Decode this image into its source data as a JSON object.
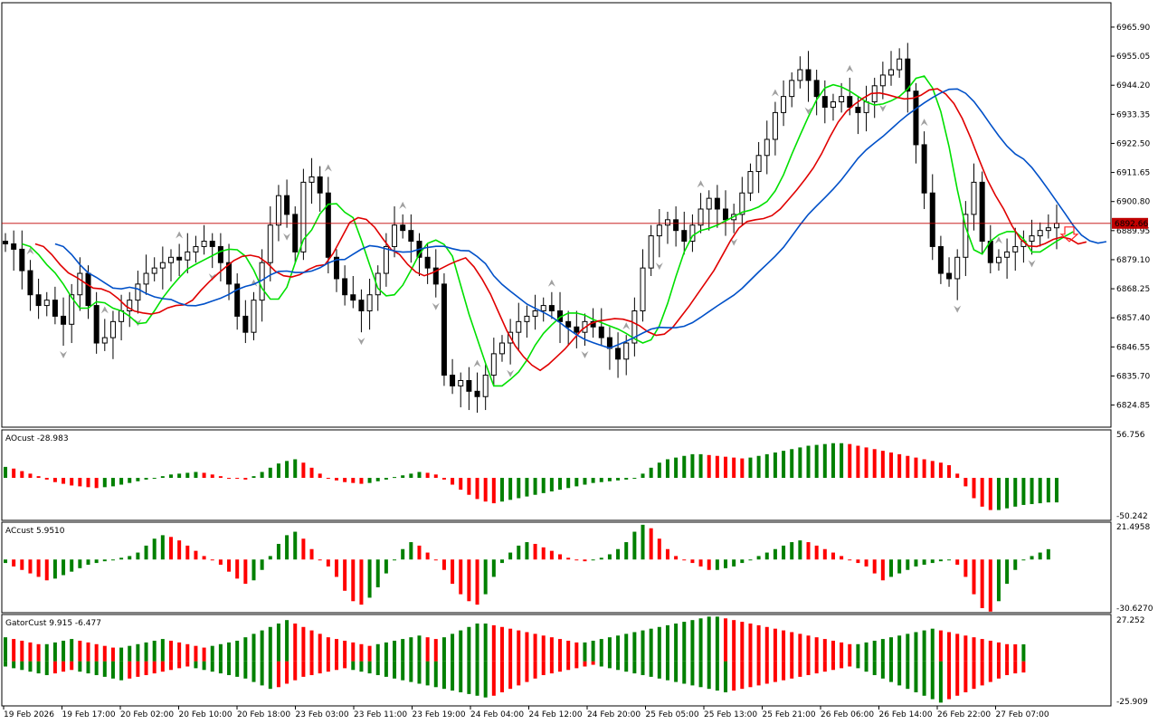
{
  "colors": {
    "bull_bar": "#008000",
    "bear_bar": "#ff0000",
    "ma_fast": "#00e000",
    "ma_mid": "#e00000",
    "ma_slow": "#0050c8",
    "price_line": "#c00000",
    "price_tag_bg": "#c00000",
    "fractal": "#a0a0a0",
    "signal_arrow": "#ff2020"
  },
  "icons": {
    "fractal_up": "fractal-up-icon",
    "fractal_down": "fractal-down-icon",
    "sell_arrow": "sell-arrow-icon"
  },
  "main": {
    "current_price": 6892.66,
    "current_price_label": "6892.66",
    "ylim": [
      6816.6,
      6975.0
    ],
    "y_ticks": [
      "6965.90",
      "6955.05",
      "6944.20",
      "6933.35",
      "6922.50",
      "6911.65",
      "6900.80",
      "6889.95",
      "6879.10",
      "6868.25",
      "6857.40",
      "6846.55",
      "6835.70",
      "6824.85"
    ],
    "x_labels": [
      "19 Feb 2026",
      "19 Feb 17:00",
      "20 Feb 02:00",
      "20 Feb 10:00",
      "20 Feb 18:00",
      "23 Feb 03:00",
      "23 Feb 11:00",
      "23 Feb 19:00",
      "24 Feb 04:00",
      "24 Feb 12:00",
      "24 Feb 20:00",
      "25 Feb 05:00",
      "25 Feb 13:00",
      "25 Feb 21:00",
      "26 Feb 06:00",
      "26 Feb 14:00",
      "26 Feb 22:00",
      "27 Feb 07:00"
    ]
  },
  "ao": {
    "label": "AOcust -28.983",
    "ymax_label": "56.756",
    "ymin_label": "-50.242",
    "ylim": [
      -50.242,
      56.756
    ]
  },
  "ac": {
    "label": "ACcust 5.9510",
    "ymax_label": "21.4958",
    "ymin_label": "-30.6270",
    "ylim": [
      -30.627,
      21.4958
    ]
  },
  "gator": {
    "label": "GatorCust 9.915 -6.477",
    "ymax_label": "27.252",
    "ymin_label": "-25.909",
    "ylim": [
      -25.909,
      27.252
    ]
  },
  "chart_data": {
    "type": "candlestick",
    "series_close": [
      6885,
      6883,
      6875,
      6866,
      6862,
      6864,
      6858,
      6855,
      6866,
      6874,
      6862,
      6848,
      6850,
      6856,
      6860,
      6864,
      6870,
      6874,
      6876,
      6878,
      6880,
      6879,
      6882,
      6884,
      6886,
      6884,
      6878,
      6870,
      6858,
      6852,
      6864,
      6878,
      6892,
      6903,
      6896,
      6882,
      6908,
      6910,
      6904,
      6880,
      6872,
      6866,
      6864,
      6860,
      6866,
      6874,
      6884,
      6892,
      6890,
      6886,
      6880,
      6876,
      6870,
      6836,
      6832,
      6834,
      6830,
      6828,
      6836,
      6844,
      6848,
      6852,
      6856,
      6858,
      6860,
      6862,
      6860,
      6856,
      6854,
      6852,
      6856,
      6854,
      6850,
      6846,
      6842,
      6848,
      6860,
      6876,
      6888,
      6892,
      6894,
      6890,
      6886,
      6892,
      6898,
      6902,
      6898,
      6894,
      6896,
      6904,
      6912,
      6918,
      6924,
      6934,
      6940,
      6946,
      6950,
      6946,
      6940,
      6936,
      6938,
      6940,
      6936,
      6934,
      6938,
      6944,
      6948,
      6950,
      6954,
      6942,
      6922,
      6904,
      6884,
      6874,
      6872,
      6880,
      6896,
      6908,
      6886,
      6878,
      6880,
      6882,
      6884,
      6886,
      6888,
      6890,
      6891,
      6892.66
    ],
    "ao_values": [
      13,
      11,
      8,
      5,
      2,
      -2,
      -5,
      -7,
      -9,
      -10,
      -11,
      -12,
      -11,
      -10,
      -8,
      -6,
      -4,
      -2,
      0,
      2,
      4,
      5,
      6,
      7,
      6,
      4,
      2,
      0,
      -1,
      -2,
      2,
      7,
      12,
      17,
      20,
      22,
      18,
      12,
      5,
      0,
      -3,
      -5,
      -6,
      -7,
      -6,
      -4,
      -2,
      1,
      3,
      5,
      7,
      6,
      4,
      -2,
      -8,
      -14,
      -20,
      -25,
      -28,
      -30,
      -28,
      -26,
      -24,
      -22,
      -20,
      -18,
      -16,
      -14,
      -12,
      -10,
      -8,
      -6,
      -5,
      -4,
      -3,
      -2,
      -1,
      5,
      12,
      18,
      22,
      24,
      26,
      28,
      28,
      27,
      26,
      25,
      24,
      23,
      24,
      26,
      28,
      30,
      32,
      34,
      36,
      38,
      39,
      40,
      41,
      41,
      40,
      38,
      36,
      34,
      32,
      30,
      28,
      26,
      24,
      22,
      20,
      18,
      15,
      5,
      -10,
      -24,
      -34,
      -38,
      -38,
      -36,
      -34,
      -32,
      -31,
      -30,
      -29,
      -28.983
    ],
    "ac_values": [
      -2,
      -4,
      -6,
      -8,
      -10,
      -12,
      -11,
      -9,
      -7,
      -5,
      -3,
      -2,
      -1,
      0,
      1,
      2,
      4,
      8,
      12,
      14,
      13,
      11,
      8,
      5,
      2,
      0,
      -3,
      -7,
      -11,
      -14,
      -12,
      -6,
      2,
      9,
      14,
      16,
      12,
      6,
      0,
      -4,
      -10,
      -18,
      -24,
      -26,
      -22,
      -16,
      -8,
      0,
      6,
      10,
      8,
      4,
      0,
      -6,
      -14,
      -20,
      -24,
      -26,
      -20,
      -10,
      -2,
      4,
      8,
      10,
      9,
      7,
      5,
      3,
      1,
      0,
      -1,
      0,
      1,
      3,
      6,
      10,
      16,
      20,
      18,
      12,
      6,
      2,
      0,
      -2,
      -4,
      -6,
      -6,
      -5,
      -4,
      -2,
      0,
      2,
      4,
      6,
      8,
      10,
      11,
      10,
      8,
      6,
      4,
      2,
      0,
      -2,
      -4,
      -8,
      -12,
      -10,
      -8,
      -6,
      -4,
      -3,
      -2,
      -1,
      0,
      -3,
      -10,
      -20,
      -28,
      -30,
      -24,
      -14,
      -6,
      0,
      2,
      4,
      5.951
    ],
    "gator_upper": [
      14,
      13,
      12,
      11,
      10,
      10,
      11,
      12,
      13,
      12,
      11,
      10,
      9,
      8,
      8,
      9,
      10,
      11,
      12,
      13,
      12,
      11,
      10,
      9,
      8,
      9,
      10,
      11,
      12,
      14,
      16,
      18,
      20,
      22,
      24,
      22,
      20,
      18,
      16,
      14,
      13,
      12,
      11,
      10,
      9,
      10,
      11,
      12,
      13,
      14,
      15,
      14,
      13,
      14,
      16,
      18,
      20,
      22,
      22,
      21,
      20,
      19,
      18,
      17,
      16,
      15,
      14,
      13,
      12,
      11,
      11,
      12,
      13,
      14,
      15,
      16,
      17,
      18,
      19,
      20,
      21,
      22,
      23,
      24,
      25,
      26,
      26,
      25,
      24,
      23,
      22,
      21,
      20,
      19,
      18,
      17,
      16,
      15,
      14,
      13,
      12,
      11,
      10,
      10,
      11,
      12,
      13,
      14,
      15,
      16,
      17,
      18,
      19,
      18,
      17,
      16,
      15,
      14,
      13,
      12,
      11,
      10,
      9.915,
      9.915
    ],
    "gator_lower": [
      -3,
      -4,
      -5,
      -6,
      -7,
      -8,
      -7,
      -6,
      -5,
      -6,
      -7,
      -8,
      -9,
      -10,
      -11,
      -10,
      -9,
      -8,
      -7,
      -6,
      -5,
      -4,
      -3,
      -4,
      -5,
      -6,
      -7,
      -8,
      -9,
      -10,
      -12,
      -14,
      -16,
      -15,
      -13,
      -11,
      -9,
      -8,
      -7,
      -6,
      -5,
      -4,
      -5,
      -6,
      -7,
      -8,
      -9,
      -10,
      -11,
      -12,
      -13,
      -14,
      -15,
      -16,
      -17,
      -18,
      -19,
      -20,
      -21,
      -20,
      -18,
      -16,
      -14,
      -12,
      -10,
      -8,
      -7,
      -6,
      -5,
      -4,
      -3,
      -2,
      -3,
      -4,
      -5,
      -6,
      -7,
      -8,
      -9,
      -10,
      -11,
      -12,
      -13,
      -14,
      -15,
      -16,
      -17,
      -18,
      -17,
      -16,
      -15,
      -14,
      -13,
      -12,
      -11,
      -10,
      -9,
      -8,
      -7,
      -6,
      -5,
      -4,
      -3,
      -4,
      -6,
      -8,
      -10,
      -12,
      -14,
      -16,
      -18,
      -20,
      -22,
      -24,
      -22,
      -20,
      -18,
      -16,
      -14,
      -12,
      -10,
      -8,
      -7,
      -6.477
    ]
  }
}
